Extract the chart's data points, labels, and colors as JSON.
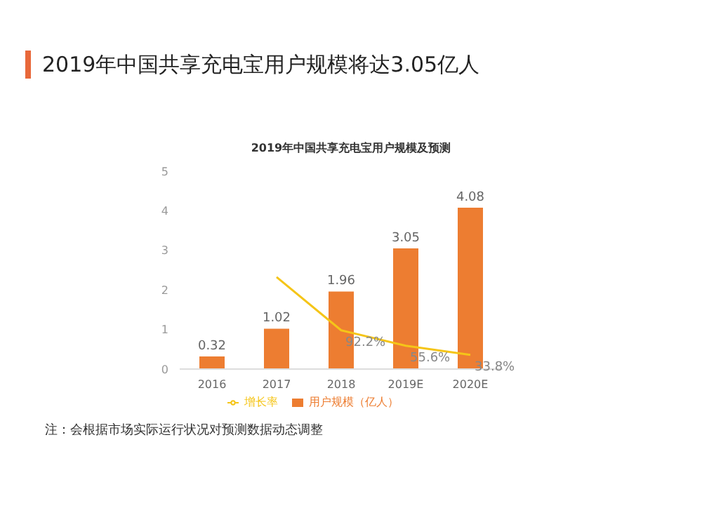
{
  "chart_data": {
    "type": "bar",
    "title": "2019年中国共享充电宝用户规模将达3.05亿人",
    "subtitle": "2019年中国共享充电宝用户规模及预测",
    "categories": [
      "2016",
      "2017",
      "2018",
      "2019E",
      "2020E"
    ],
    "series": [
      {
        "name": "用户规模（亿人）",
        "color": "#ed7d31",
        "values": [
          0.32,
          1.02,
          1.96,
          3.05,
          4.08
        ]
      },
      {
        "name": "增长率",
        "type": "line",
        "axis": "y2",
        "color": "#f5c518",
        "values": [
          null,
          218.8,
          92.2,
          55.6,
          33.8
        ],
        "value_labels": [
          null,
          null,
          "92.2%",
          "55.6%",
          "33.8%"
        ]
      }
    ],
    "ylim": [
      0,
      5
    ],
    "yticks": [
      0,
      1,
      2,
      3,
      4,
      5
    ],
    "grid": false,
    "legend": "bottom",
    "data_labels": true,
    "marker": "none",
    "annotations": [
      "注：会根据市场实际运行状况对预测数据动态调整"
    ]
  }
}
